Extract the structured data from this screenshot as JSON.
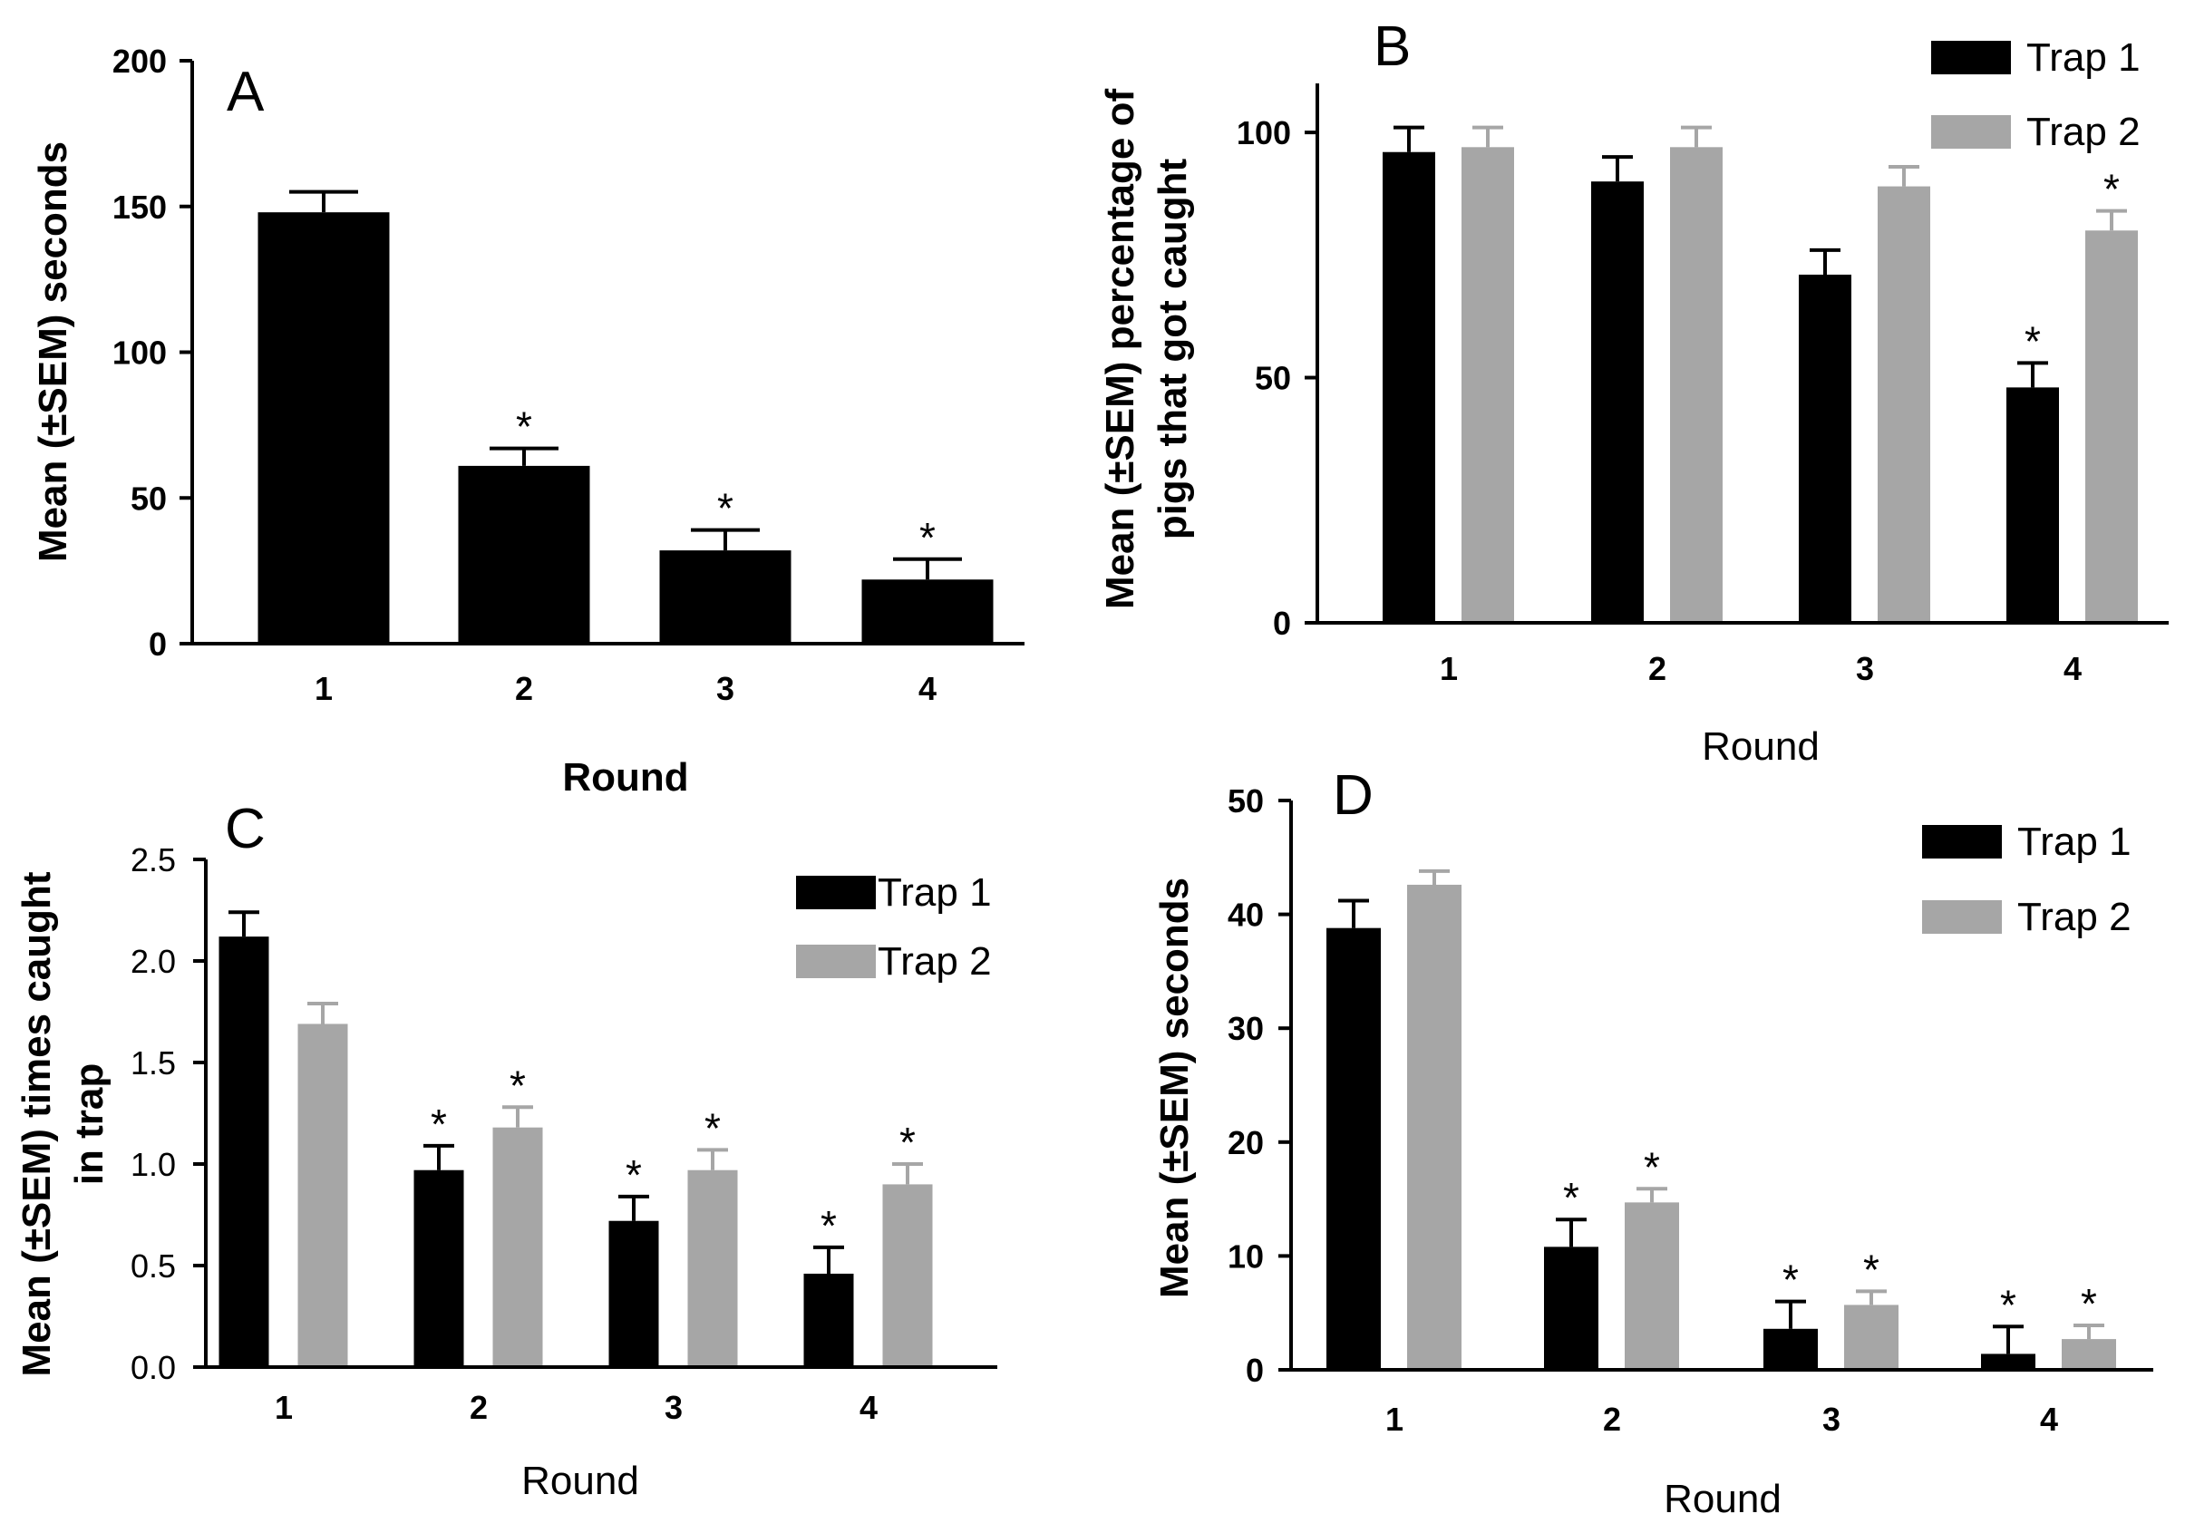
{
  "colors": {
    "trap1": "#000000",
    "trap2": "#a6a6a6"
  },
  "chart_data": [
    {
      "panel": "A",
      "type": "bar",
      "categories": [
        "1",
        "2",
        "3",
        "4"
      ],
      "series": [
        {
          "name": "",
          "values": [
            148,
            61,
            32,
            22
          ],
          "sem": [
            7,
            6,
            7,
            7
          ],
          "significant": [
            false,
            true,
            true,
            true
          ]
        }
      ],
      "xlabel": "Round",
      "ylabel": "Mean (±SEM) seconds",
      "ylim": [
        0,
        200
      ],
      "yticks": [
        0,
        50,
        100,
        150,
        200
      ],
      "legend": "none"
    },
    {
      "panel": "B",
      "type": "bar",
      "categories": [
        "1",
        "2",
        "3",
        "4"
      ],
      "series": [
        {
          "name": "Trap 1",
          "values": [
            96,
            90,
            71,
            48
          ],
          "sem": [
            5,
            5,
            5,
            5
          ],
          "significant": [
            false,
            false,
            false,
            true
          ]
        },
        {
          "name": "Trap 2",
          "values": [
            97,
            97,
            89,
            80
          ],
          "sem": [
            4,
            4,
            4,
            4
          ],
          "significant": [
            false,
            false,
            false,
            true
          ]
        }
      ],
      "xlabel": "Round",
      "ylabel": "Mean (±SEM) percentage of",
      "ylabel2": "pigs that got caught",
      "ylim": [
        0,
        110
      ],
      "yticks": [
        0,
        50,
        100
      ],
      "legend": "top-right"
    },
    {
      "panel": "C",
      "type": "bar",
      "categories": [
        "1",
        "2",
        "3",
        "4"
      ],
      "series": [
        {
          "name": "Trap 1",
          "values": [
            2.12,
            0.97,
            0.72,
            0.46
          ],
          "sem": [
            0.12,
            0.12,
            0.12,
            0.13
          ],
          "significant": [
            false,
            true,
            true,
            true
          ]
        },
        {
          "name": "Trap 2",
          "values": [
            1.69,
            1.18,
            0.97,
            0.9
          ],
          "sem": [
            0.1,
            0.1,
            0.1,
            0.1
          ],
          "significant": [
            false,
            true,
            true,
            true
          ]
        }
      ],
      "xlabel": "Round",
      "ylabel": "Mean (±SEM) times caught",
      "ylabel2": "in trap",
      "ylim": [
        0,
        2.5
      ],
      "yticks": [
        "0.0",
        "0.5",
        "1.0",
        "1.5",
        "2.0",
        "2.5"
      ],
      "legend": "top-right"
    },
    {
      "panel": "D",
      "type": "bar",
      "categories": [
        "1",
        "2",
        "3",
        "4"
      ],
      "series": [
        {
          "name": "Trap 1",
          "values": [
            38.8,
            10.8,
            3.6,
            1.4
          ],
          "sem": [
            2.4,
            2.4,
            2.4,
            2.4
          ],
          "significant": [
            false,
            true,
            true,
            true
          ]
        },
        {
          "name": "Trap 2",
          "values": [
            42.6,
            14.7,
            5.7,
            2.7
          ],
          "sem": [
            1.2,
            1.2,
            1.2,
            1.2
          ],
          "significant": [
            false,
            true,
            true,
            true
          ]
        }
      ],
      "xlabel": "Round",
      "ylabel": "Mean (±SEM) seconds",
      "ylim": [
        0,
        50
      ],
      "yticks": [
        0,
        10,
        20,
        30,
        40,
        50
      ],
      "legend": "top-right"
    }
  ]
}
